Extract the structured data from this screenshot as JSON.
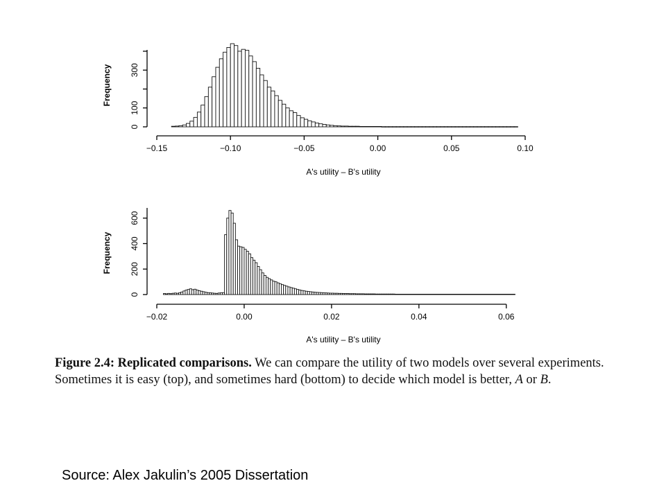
{
  "caption": {
    "figure_label": "Figure 2.4:",
    "figure_title": "Replicated comparisons.",
    "text": "We can compare the utility of two models over several experiments. Sometimes it is easy (top), and sometimes hard (bottom) to decide which model is better,",
    "var_a": "A",
    "joiner": " or ",
    "var_b": "B",
    "end": "."
  },
  "source": "Source: Alex Jakulin’s 2005 Dissertation",
  "chart_data": [
    {
      "type": "bar",
      "xlabel": "A's utility – B's utility",
      "ylabel": "Frequency",
      "xlim": [
        -0.15,
        0.1
      ],
      "ylim": [
        0,
        440
      ],
      "xticks": [
        -0.15,
        -0.1,
        -0.05,
        0.0,
        0.05,
        0.1
      ],
      "xtick_labels": [
        "−0.15",
        "−0.10",
        "−0.05",
        "0.00",
        "0.05",
        "0.10"
      ],
      "yticks": [
        0,
        100,
        300
      ],
      "ytick_labels": [
        "0",
        "100",
        "300"
      ],
      "bin_start": -0.14,
      "bin_width": 0.0025,
      "values": [
        3,
        4,
        6,
        10,
        18,
        30,
        50,
        78,
        115,
        160,
        210,
        265,
        315,
        360,
        395,
        420,
        440,
        430,
        400,
        410,
        405,
        375,
        345,
        310,
        275,
        245,
        210,
        190,
        165,
        140,
        120,
        100,
        85,
        75,
        60,
        48,
        40,
        32,
        26,
        20,
        16,
        13,
        10,
        8,
        6,
        5,
        4,
        4,
        3,
        3,
        3,
        2,
        2,
        2,
        2,
        2,
        2,
        1,
        1,
        1,
        1,
        1,
        1,
        1,
        1,
        1,
        1,
        1,
        1,
        1,
        1,
        1,
        1,
        1,
        1,
        1,
        1,
        1,
        1,
        1,
        1,
        1,
        1,
        1,
        1,
        1,
        1,
        1,
        1,
        1,
        1,
        1,
        1,
        1
      ]
    },
    {
      "type": "bar",
      "xlabel": "A's utility – B's utility",
      "ylabel": "Frequency",
      "xlim": [
        -0.02,
        0.064
      ],
      "ylim": [
        0,
        680
      ],
      "xticks": [
        -0.02,
        0.0,
        0.02,
        0.04,
        0.06
      ],
      "xtick_labels": [
        "−0.02",
        "0.00",
        "0.02",
        "0.04",
        "0.06"
      ],
      "yticks": [
        0,
        200,
        400,
        600
      ],
      "ytick_labels": [
        "0",
        "200",
        "400",
        "600"
      ],
      "bin_start": -0.0185,
      "bin_width": 0.0005,
      "values": [
        8,
        6,
        9,
        7,
        10,
        12,
        10,
        14,
        20,
        28,
        35,
        40,
        45,
        38,
        42,
        35,
        30,
        26,
        22,
        18,
        15,
        14,
        12,
        10,
        9,
        12,
        14,
        15,
        470,
        600,
        660,
        640,
        560,
        430,
        380,
        375,
        370,
        355,
        340,
        320,
        290,
        270,
        250,
        220,
        195,
        170,
        150,
        135,
        125,
        115,
        105,
        100,
        92,
        85,
        78,
        72,
        66,
        60,
        55,
        50,
        45,
        40,
        36,
        32,
        29,
        26,
        24,
        22,
        20,
        18,
        17,
        16,
        15,
        14,
        13,
        12,
        11,
        11,
        10,
        10,
        9,
        9,
        8,
        8,
        8,
        7,
        7,
        7,
        6,
        6,
        6,
        6,
        5,
        5,
        5,
        5,
        5,
        4,
        4,
        4,
        4,
        4,
        4,
        4,
        4,
        4,
        3,
        3,
        3,
        3,
        3,
        3,
        3,
        3,
        3,
        3,
        3,
        3,
        3,
        3,
        3,
        3,
        3,
        3,
        3,
        3,
        3,
        3,
        3,
        3,
        3,
        3,
        3,
        3,
        3,
        3,
        3,
        3,
        3,
        3,
        3,
        3,
        3,
        3,
        3,
        3,
        3,
        3,
        3,
        3,
        3,
        3,
        3,
        3,
        3,
        3,
        3,
        3,
        3,
        3,
        3
      ]
    }
  ]
}
